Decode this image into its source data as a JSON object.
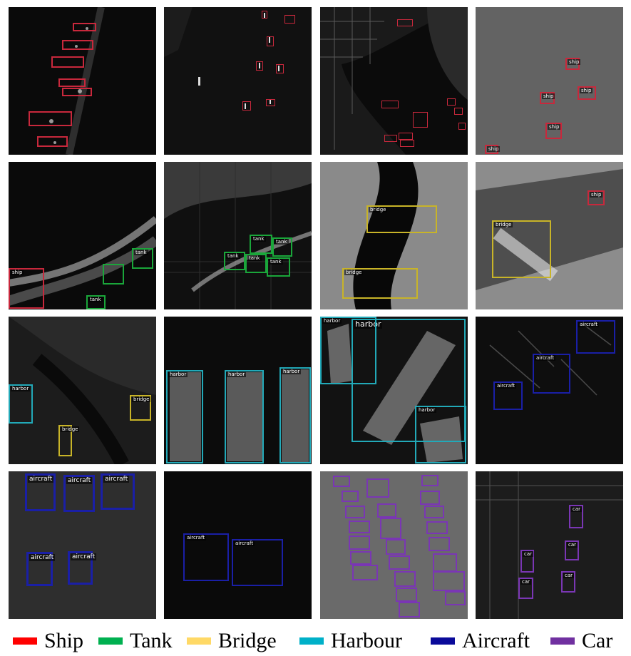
{
  "colors": {
    "ship": "#c8283c",
    "tank": "#1aa63a",
    "bridge": "#c8b428",
    "harbour": "#22a9b8",
    "aircraft": "#1a1fa6",
    "car": "#7a36b4"
  },
  "labels": {
    "ship": "ship",
    "tank": "tank",
    "bridge": "bridge",
    "harbor": "harbor",
    "aircraft": "aircraft",
    "car": "car"
  },
  "legend": [
    {
      "key": "ship",
      "label": "Ship",
      "color": "#ff0000"
    },
    {
      "key": "tank",
      "label": "Tank",
      "color": "#00b050"
    },
    {
      "key": "bridge",
      "label": "Bridge",
      "color": "#ffd966"
    },
    {
      "key": "harbour",
      "label": "Harbour",
      "color": "#00b0c8"
    },
    {
      "key": "aircraft",
      "label": "Aircraft",
      "color": "#0a0a9a"
    },
    {
      "key": "car",
      "label": "Car",
      "color": "#7030a0"
    }
  ]
}
